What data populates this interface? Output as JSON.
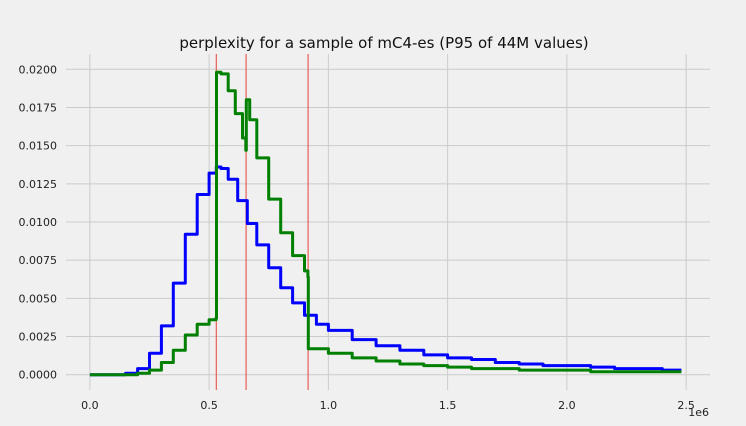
{
  "chart_data": {
    "type": "line",
    "title": "perplexity for a sample of mC4-es (P95 of 44M values)",
    "xlabel": "",
    "ylabel": "",
    "x_offset_label": "1e6",
    "xlim": [
      -0.1,
      2.6
    ],
    "ylim": [
      -0.001,
      0.021
    ],
    "x_ticks": [
      0.0,
      0.5,
      1.0,
      1.5,
      2.0,
      2.5
    ],
    "x_tick_labels": [
      "0.0",
      "0.5",
      "1.0",
      "1.5",
      "2.0",
      "2.5"
    ],
    "y_ticks": [
      0.0,
      0.0025,
      0.005,
      0.0075,
      0.01,
      0.0125,
      0.015,
      0.0175,
      0.02
    ],
    "y_tick_labels": [
      "0.0000",
      "0.0025",
      "0.0050",
      "0.0075",
      "0.0100",
      "0.0125",
      "0.0150",
      "0.0175",
      "0.0200"
    ],
    "grid": true,
    "legend": "none",
    "vlines": [
      0.53,
      0.655,
      0.915
    ],
    "vline_color": "#e8413c",
    "series": [
      {
        "color": "#0000ff",
        "style": "step",
        "x": [
          0.0,
          0.05,
          0.1,
          0.15,
          0.2,
          0.25,
          0.3,
          0.35,
          0.4,
          0.45,
          0.5,
          0.53,
          0.55,
          0.58,
          0.62,
          0.66,
          0.7,
          0.75,
          0.8,
          0.85,
          0.9,
          0.95,
          1.0,
          1.1,
          1.2,
          1.3,
          1.4,
          1.5,
          1.6,
          1.7,
          1.8,
          1.9,
          2.0,
          2.1,
          2.2,
          2.3,
          2.4,
          2.48
        ],
        "y": [
          0.0,
          0.0,
          0.0,
          0.0001,
          0.0004,
          0.0014,
          0.0032,
          0.006,
          0.0092,
          0.0118,
          0.0132,
          0.0136,
          0.0135,
          0.0128,
          0.0114,
          0.0099,
          0.0085,
          0.007,
          0.0057,
          0.0047,
          0.0039,
          0.0033,
          0.0029,
          0.0023,
          0.0019,
          0.0016,
          0.0013,
          0.0011,
          0.001,
          0.0008,
          0.0007,
          0.0006,
          0.0006,
          0.0005,
          0.0004,
          0.0004,
          0.0003,
          0.0003
        ]
      },
      {
        "color": "#008000",
        "style": "step",
        "x": [
          0.0,
          0.1,
          0.2,
          0.25,
          0.3,
          0.35,
          0.4,
          0.45,
          0.5,
          0.529,
          0.531,
          0.55,
          0.58,
          0.61,
          0.64,
          0.654,
          0.656,
          0.67,
          0.7,
          0.75,
          0.8,
          0.85,
          0.9,
          0.914,
          0.916,
          1.0,
          1.1,
          1.2,
          1.3,
          1.4,
          1.5,
          1.6,
          1.7,
          1.8,
          1.9,
          2.0,
          2.1,
          2.2,
          2.3,
          2.4,
          2.48
        ],
        "y": [
          0.0,
          0.0,
          0.0001,
          0.0003,
          0.0008,
          0.0016,
          0.0026,
          0.0033,
          0.0036,
          0.0037,
          0.0198,
          0.0197,
          0.0186,
          0.0171,
          0.0155,
          0.0147,
          0.018,
          0.0167,
          0.0142,
          0.0115,
          0.0093,
          0.0078,
          0.0068,
          0.0064,
          0.0017,
          0.0014,
          0.0011,
          0.0009,
          0.0007,
          0.0006,
          0.0005,
          0.0004,
          0.0004,
          0.0003,
          0.0003,
          0.0003,
          0.0002,
          0.0002,
          0.0002,
          0.0002,
          0.0002
        ]
      }
    ]
  }
}
